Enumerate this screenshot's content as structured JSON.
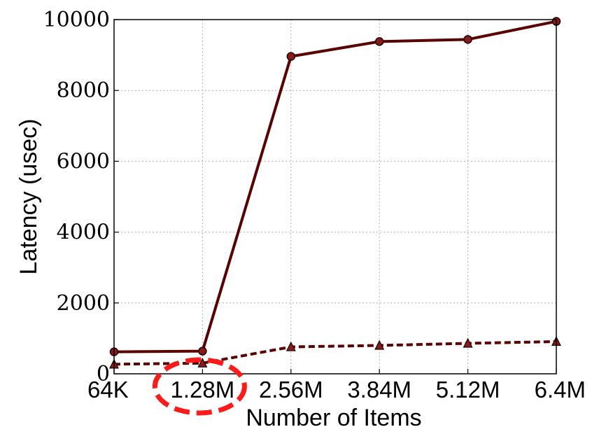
{
  "chart_data": {
    "type": "line",
    "categories": [
      "64K",
      "1.28M",
      "2.56M",
      "3.84M",
      "5.12M",
      "6.4M"
    ],
    "xlabel": "Number of Items",
    "ylabel": "Latency (usec)",
    "ylim": [
      0,
      10000
    ],
    "yticks": [
      0,
      2000,
      4000,
      6000,
      8000,
      10000
    ],
    "grid": true,
    "series": [
      {
        "line_style": "solid",
        "marker": "circle",
        "color": "#5a0000",
        "values": [
          620,
          640,
          8960,
          9380,
          9440,
          9950
        ]
      },
      {
        "line_style": "dashed",
        "marker": "triangle",
        "color": "#5a0000",
        "values": [
          270,
          300,
          760,
          800,
          860,
          910
        ]
      }
    ],
    "annotation": {
      "shape": "dashed-ellipse",
      "color": "#ff1a1a",
      "target_category": "1.28M"
    }
  }
}
